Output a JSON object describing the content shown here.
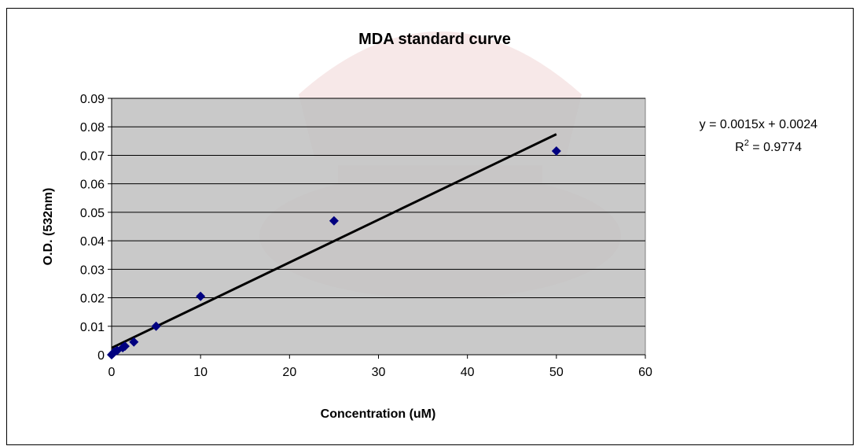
{
  "chart_data": {
    "type": "scatter",
    "title": "MDA standard curve",
    "xlabel": "Concentration (uM)",
    "ylabel": "O.D. (532nm)",
    "xlim": [
      0,
      60
    ],
    "ylim": [
      0,
      0.09
    ],
    "x_ticks": [
      "0",
      "10",
      "20",
      "30",
      "40",
      "50",
      "60"
    ],
    "y_ticks": [
      "0",
      "0.01",
      "0.02",
      "0.03",
      "0.04",
      "0.05",
      "0.06",
      "0.07",
      "0.08",
      "0.09"
    ],
    "grid": "horizontal",
    "plot_background": "#c0c0c0",
    "marker": "diamond",
    "marker_color": "#000080",
    "series": [
      {
        "points": [
          {
            "x": 0,
            "y": 0.0
          },
          {
            "x": 0.156,
            "y": 0.0005
          },
          {
            "x": 0.3125,
            "y": 0.001
          },
          {
            "x": 0.625,
            "y": 0.0015
          },
          {
            "x": 1.25,
            "y": 0.0025
          },
          {
            "x": 1.5,
            "y": 0.003
          },
          {
            "x": 2.5,
            "y": 0.0045
          },
          {
            "x": 5,
            "y": 0.01
          },
          {
            "x": 10,
            "y": 0.0205
          },
          {
            "x": 25,
            "y": 0.047
          },
          {
            "x": 50,
            "y": 0.0715
          }
        ]
      }
    ],
    "trendline": {
      "type": "linear",
      "slope": 0.0015,
      "intercept": 0.0024,
      "x_range": [
        0,
        50
      ],
      "color": "#000000",
      "equation_text": "y = 0.0015x + 0.0024",
      "r2_label": "R",
      "r2_sup": "2",
      "r2_value": " = 0.9774"
    }
  }
}
